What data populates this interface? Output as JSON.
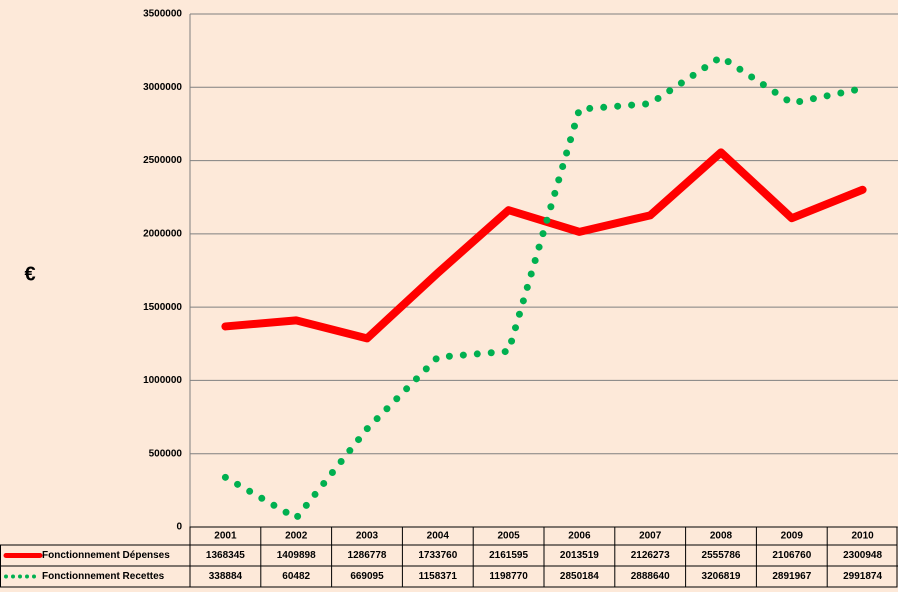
{
  "chart_data": {
    "type": "line",
    "y_label": "€",
    "categories": [
      "2001",
      "2002",
      "2003",
      "2004",
      "2005",
      "2006",
      "2007",
      "2008",
      "2009",
      "2010"
    ],
    "series": [
      {
        "name": "Fonctionnement Dépenses",
        "color": "#ff0000",
        "style": "solid",
        "values": [
          1368345,
          1409898,
          1286778,
          1733760,
          2161595,
          2013519,
          2126273,
          2555786,
          2106760,
          2300948
        ]
      },
      {
        "name": "Fonctionnement Recettes",
        "color": "#00b050",
        "style": "dotted",
        "values": [
          338884,
          60482,
          669095,
          1158371,
          1198770,
          2850184,
          2888640,
          3206819,
          2891967,
          2991874
        ]
      }
    ],
    "ylim": [
      0,
      3500000
    ],
    "yticks": [
      0,
      500000,
      1000000,
      1500000,
      2000000,
      2500000,
      3000000,
      3500000
    ],
    "grid": true
  }
}
